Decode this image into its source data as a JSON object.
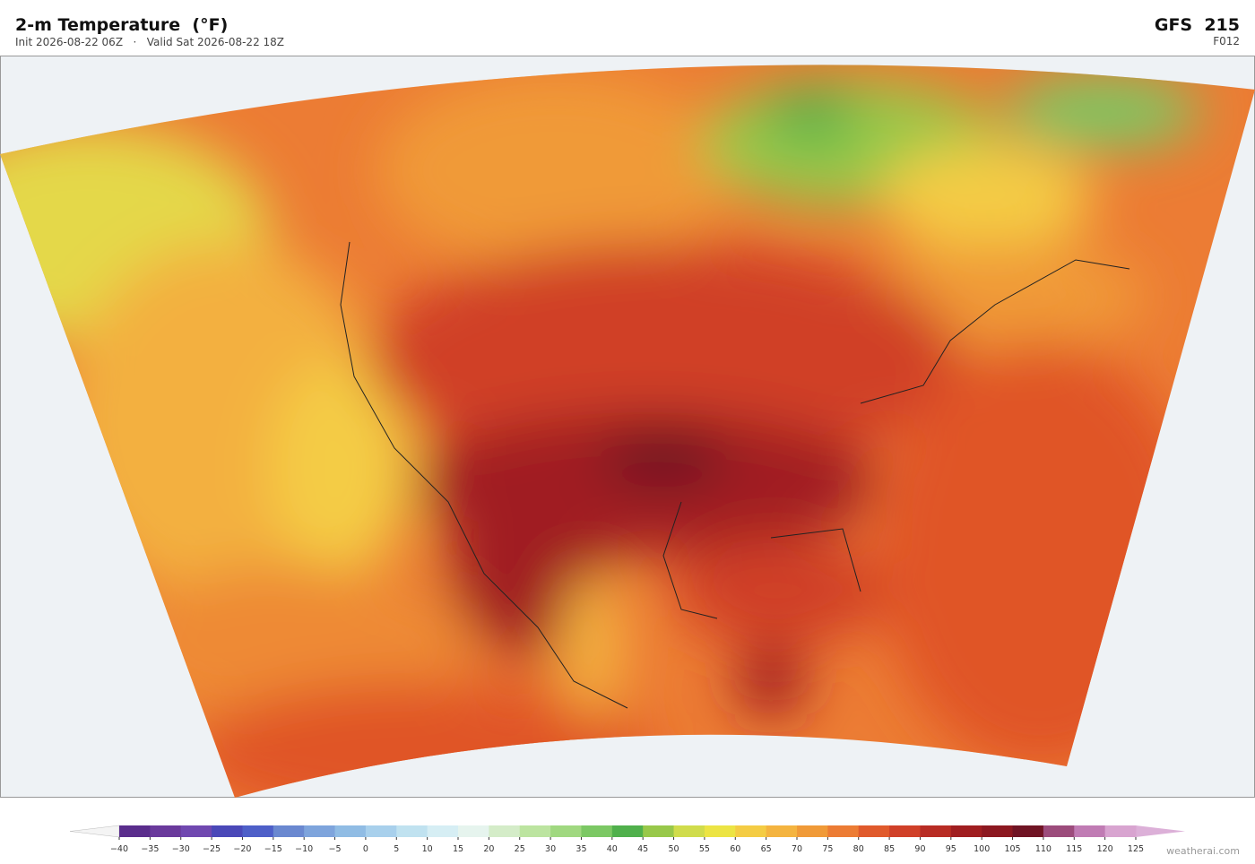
{
  "header": {
    "title": "2-m Temperature  (°F)",
    "subtitle": "Init 2026-08-22 06Z   ·   Valid Sat 2026-08-22 18Z",
    "model": "GFS  215",
    "forecast_hour": "F012"
  },
  "colorbar": {
    "labels": [
      "−40",
      "−35",
      "−30",
      "−25",
      "−20",
      "−15",
      "−10",
      "−5",
      "0",
      "5",
      "10",
      "15",
      "20",
      "25",
      "30",
      "35",
      "40",
      "45",
      "50",
      "55",
      "60",
      "65",
      "70",
      "75",
      "80",
      "85",
      "90",
      "95",
      "100",
      "105",
      "110",
      "115",
      "120",
      "125"
    ],
    "colors": [
      "#5a2d8c",
      "#6a3a9c",
      "#7048b0",
      "#4a48b8",
      "#4e5fc8",
      "#6a88d0",
      "#7ea4dc",
      "#90bce4",
      "#a8d0ec",
      "#c0e2f0",
      "#d6eef4",
      "#e6f4ee",
      "#d4ecc8",
      "#bce4a0",
      "#a0d880",
      "#7cc864",
      "#50b04c",
      "#98c84a",
      "#d0dc4c",
      "#ece444",
      "#f4cc44",
      "#f4b440",
      "#f09a38",
      "#ec7c34",
      "#e05a2c",
      "#d04028",
      "#b82c24",
      "#a01e20",
      "#8c1820",
      "#701424",
      "#9c4c7c",
      "#c07cb4",
      "#d8a4d0"
    ],
    "under_color": "#f4f4f4",
    "over_color": "#dcb0d8"
  },
  "footer": {
    "credit": "weatherai.com"
  }
}
